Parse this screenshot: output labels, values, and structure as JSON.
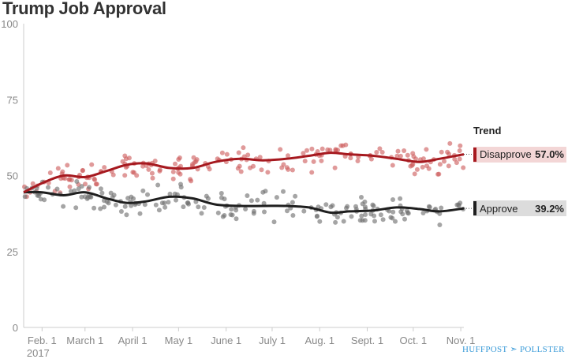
{
  "chart_data": {
    "type": "scatter",
    "title": "Trump Job Approval",
    "ylim": [
      0,
      100
    ],
    "yticks": [
      "0",
      "25",
      "50",
      "75",
      "100"
    ],
    "x_range": [
      "2017-01-20",
      "2017-11-03"
    ],
    "xticks": [
      {
        "date": "2017-02-01",
        "label": "Feb. 1",
        "sublabel": "2017"
      },
      {
        "date": "2017-03-01",
        "label": "March 1"
      },
      {
        "date": "2017-04-01",
        "label": "April 1"
      },
      {
        "date": "2017-05-01",
        "label": "May 1"
      },
      {
        "date": "2017-06-01",
        "label": "June 1"
      },
      {
        "date": "2017-07-01",
        "label": "July 1"
      },
      {
        "date": "2017-08-01",
        "label": "Aug. 1"
      },
      {
        "date": "2017-09-01",
        "label": "Sept. 1"
      },
      {
        "date": "2017-10-01",
        "label": "Oct. 1"
      },
      {
        "date": "2017-11-01",
        "label": "Nov. 1"
      }
    ],
    "legend_title": "Trend",
    "series": [
      {
        "name": "Disapprove",
        "current": "57.0%",
        "trend": [
          {
            "x": "2017-01-20",
            "y": 44.5
          },
          {
            "x": "2017-02-01",
            "y": 47.5
          },
          {
            "x": "2017-02-15",
            "y": 50
          },
          {
            "x": "2017-03-01",
            "y": 49.5
          },
          {
            "x": "2017-03-15",
            "y": 51.5
          },
          {
            "x": "2017-03-28",
            "y": 53.5
          },
          {
            "x": "2017-04-10",
            "y": 54
          },
          {
            "x": "2017-04-25",
            "y": 52.5
          },
          {
            "x": "2017-05-10",
            "y": 52.5
          },
          {
            "x": "2017-05-25",
            "y": 54.5
          },
          {
            "x": "2017-06-10",
            "y": 55.5
          },
          {
            "x": "2017-06-25",
            "y": 55
          },
          {
            "x": "2017-07-10",
            "y": 55.5
          },
          {
            "x": "2017-07-25",
            "y": 56.5
          },
          {
            "x": "2017-08-08",
            "y": 57.5
          },
          {
            "x": "2017-08-20",
            "y": 57
          },
          {
            "x": "2017-09-05",
            "y": 56.5
          },
          {
            "x": "2017-09-20",
            "y": 55.5
          },
          {
            "x": "2017-10-05",
            "y": 54.5
          },
          {
            "x": "2017-10-18",
            "y": 55.5
          },
          {
            "x": "2017-11-03",
            "y": 57.0
          }
        ]
      },
      {
        "name": "Approve",
        "current": "39.2%",
        "trend": [
          {
            "x": "2017-01-20",
            "y": 44.5
          },
          {
            "x": "2017-02-01",
            "y": 44.5
          },
          {
            "x": "2017-02-15",
            "y": 43.5
          },
          {
            "x": "2017-03-01",
            "y": 44.5
          },
          {
            "x": "2017-03-15",
            "y": 42.5
          },
          {
            "x": "2017-03-28",
            "y": 41
          },
          {
            "x": "2017-04-10",
            "y": 41.5
          },
          {
            "x": "2017-04-25",
            "y": 43
          },
          {
            "x": "2017-05-10",
            "y": 42.5
          },
          {
            "x": "2017-05-25",
            "y": 40.5
          },
          {
            "x": "2017-06-10",
            "y": 40
          },
          {
            "x": "2017-06-25",
            "y": 40
          },
          {
            "x": "2017-07-10",
            "y": 40
          },
          {
            "x": "2017-07-25",
            "y": 39.5
          },
          {
            "x": "2017-08-08",
            "y": 37.8
          },
          {
            "x": "2017-08-20",
            "y": 38.2
          },
          {
            "x": "2017-09-05",
            "y": 38.5
          },
          {
            "x": "2017-09-20",
            "y": 39.5
          },
          {
            "x": "2017-10-05",
            "y": 39
          },
          {
            "x": "2017-10-18",
            "y": 38.2
          },
          {
            "x": "2017-11-03",
            "y": 39.2
          }
        ]
      }
    ]
  },
  "colors": {
    "disapprove_line": "#a6191f",
    "disapprove_dot": "#cd5c5c",
    "disapprove_band": "#f3d6d6",
    "approve_line": "#1f1f1f",
    "approve_dot": "#6e6e6e",
    "approve_band": "#dcdcdc"
  },
  "footer": {
    "logo_left": "HUFFPOST",
    "logo_right": "POLLSTER"
  }
}
